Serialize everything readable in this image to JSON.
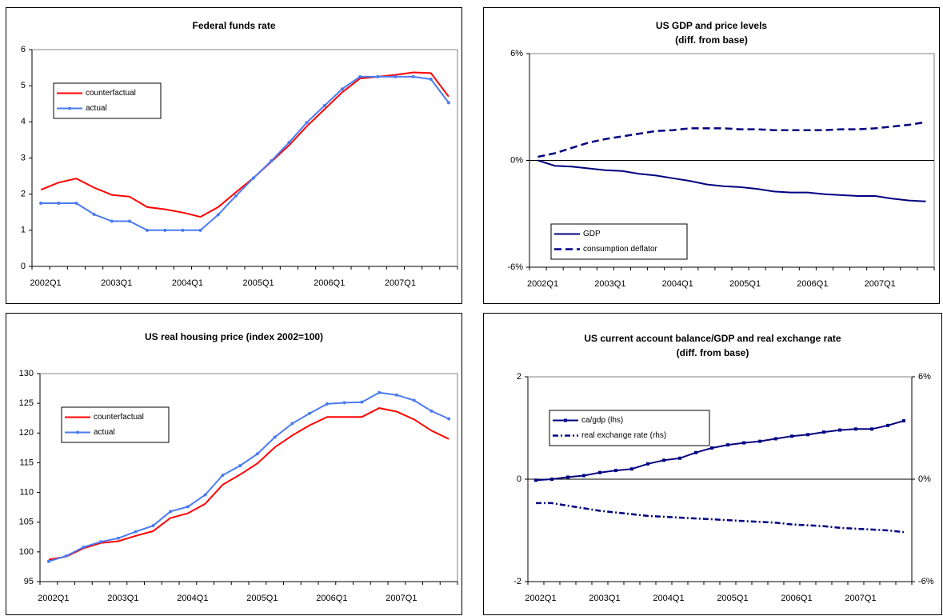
{
  "chart_data": [
    {
      "type": "line",
      "title": "Federal funds rate",
      "categories": [
        "2002Q1",
        null,
        null,
        null,
        "2003Q1",
        null,
        null,
        null,
        "2004Q1",
        null,
        null,
        null,
        "2005Q1",
        null,
        null,
        null,
        "2006Q1",
        null,
        null,
        null,
        "2007Q1",
        null,
        null,
        null
      ],
      "series": [
        {
          "name": "counterfactual",
          "color": "#ff0000",
          "style": "solid",
          "values": [
            2.12,
            2.32,
            2.43,
            2.18,
            1.98,
            1.93,
            1.64,
            1.58,
            1.49,
            1.37,
            1.64,
            2.05,
            2.45,
            2.9,
            3.35,
            3.88,
            4.35,
            4.82,
            5.2,
            5.25,
            5.3,
            5.37,
            5.35,
            4.7
          ]
        },
        {
          "name": "actual",
          "color": "#4a7bf0",
          "style": "solid",
          "marker": "circle",
          "values": [
            1.75,
            1.75,
            1.75,
            1.44,
            1.25,
            1.25,
            1.0,
            1.0,
            1.0,
            1.0,
            1.43,
            1.95,
            2.45,
            2.92,
            3.43,
            3.98,
            4.45,
            4.91,
            5.25,
            5.25,
            5.25,
            5.25,
            5.18,
            4.53
          ]
        }
      ],
      "ylim": [
        0,
        6
      ],
      "yticks": [
        0,
        1,
        2,
        3,
        4,
        5,
        6
      ],
      "legend": "upper-left"
    },
    {
      "type": "line",
      "title": "US GDP and price levels",
      "subtitle": "(diff. from base)",
      "categories": [
        "2002Q1",
        null,
        null,
        null,
        "2003Q1",
        null,
        null,
        null,
        "2004Q1",
        null,
        null,
        null,
        "2005Q1",
        null,
        null,
        null,
        "2006Q1",
        null,
        null,
        null,
        "2007Q1",
        null,
        null,
        null
      ],
      "series": [
        {
          "name": "GDP",
          "color": "#000080",
          "style": "solid",
          "values": [
            0,
            -0.3,
            -0.35,
            -0.45,
            -0.55,
            -0.6,
            -0.75,
            -0.85,
            -1.0,
            -1.15,
            -1.35,
            -1.45,
            -1.5,
            -1.6,
            -1.75,
            -1.8,
            -1.8,
            -1.9,
            -1.95,
            -2.0,
            -2.0,
            -2.15,
            -2.25,
            -2.3
          ]
        },
        {
          "name": "consumption deflator",
          "color": "#000080",
          "style": "dashed",
          "values": [
            0.2,
            0.4,
            0.7,
            1.0,
            1.2,
            1.35,
            1.5,
            1.65,
            1.7,
            1.8,
            1.8,
            1.8,
            1.75,
            1.75,
            1.7,
            1.7,
            1.7,
            1.7,
            1.75,
            1.75,
            1.8,
            1.9,
            2.0,
            2.15
          ]
        }
      ],
      "ylim": [
        -6,
        6
      ],
      "yticks": [
        {
          "value": -6,
          "label": "-6%"
        },
        {
          "value": 0,
          "label": "0%"
        },
        {
          "value": 6,
          "label": "6%"
        }
      ],
      "zero_line": true,
      "legend": "lower-left"
    },
    {
      "type": "line",
      "title": "US real housing price (index 2002=100)",
      "categories": [
        "2002Q1",
        null,
        null,
        null,
        "2003Q1",
        null,
        null,
        null,
        "2004Q1",
        null,
        null,
        null,
        "2005Q1",
        null,
        null,
        null,
        "2006Q1",
        null,
        null,
        null,
        "2007Q1",
        null,
        null,
        null
      ],
      "series": [
        {
          "name": "counterfactual",
          "color": "#ff0000",
          "style": "solid",
          "values": [
            98.7,
            99.2,
            100.6,
            101.5,
            101.8,
            102.7,
            103.5,
            105.7,
            106.5,
            108.1,
            111.3,
            113.0,
            114.9,
            117.6,
            119.6,
            121.3,
            122.7,
            122.7,
            122.7,
            124.2,
            123.6,
            122.3,
            120.4,
            119.0
          ]
        },
        {
          "name": "actual",
          "color": "#4a7bf0",
          "style": "solid",
          "marker": "circle",
          "values": [
            98.4,
            99.3,
            100.8,
            101.7,
            102.3,
            103.4,
            104.4,
            106.8,
            107.6,
            109.6,
            112.9,
            114.5,
            116.5,
            119.3,
            121.6,
            123.3,
            124.9,
            125.1,
            125.2,
            126.8,
            126.4,
            125.5,
            123.7,
            122.4
          ]
        }
      ],
      "ylim": [
        95,
        130
      ],
      "yticks": [
        95,
        100,
        105,
        110,
        115,
        120,
        125,
        130
      ],
      "legend": "upper-left"
    },
    {
      "type": "line",
      "title": "US current account balance/GDP and real exchange rate",
      "subtitle": "(diff. from base)",
      "categories": [
        "2002Q1",
        null,
        null,
        null,
        "2003Q1",
        null,
        null,
        null,
        "2004Q1",
        null,
        null,
        null,
        "2005Q1",
        null,
        null,
        null,
        "2006Q1",
        null,
        null,
        null,
        "2007Q1",
        null,
        null,
        null
      ],
      "series": [
        {
          "name": "ca/gdp (lhs)",
          "color": "#000080",
          "style": "solid",
          "marker": "square",
          "values": [
            -0.02,
            0.0,
            0.04,
            0.07,
            0.13,
            0.17,
            0.2,
            0.3,
            0.37,
            0.41,
            0.52,
            0.61,
            0.67,
            0.71,
            0.74,
            0.79,
            0.84,
            0.87,
            0.92,
            0.96,
            0.98,
            0.98,
            1.05,
            1.14
          ]
        },
        {
          "name": "real  exchange rate (rhs)",
          "color": "#000080",
          "style": "dashdot",
          "axis": "y2",
          "values": [
            -1.4,
            -1.4,
            -1.55,
            -1.7,
            -1.85,
            -1.95,
            -2.05,
            -2.15,
            -2.2,
            -2.25,
            -2.3,
            -2.35,
            -2.4,
            -2.45,
            -2.5,
            -2.55,
            -2.65,
            -2.7,
            -2.75,
            -2.85,
            -2.9,
            -2.95,
            -3.0,
            -3.1
          ]
        }
      ],
      "ylim": [
        -2,
        2
      ],
      "yticks": [
        -2,
        0,
        2
      ],
      "y2lim": [
        -6,
        6
      ],
      "y2ticks": [
        {
          "value": -6,
          "label": "-6%"
        },
        {
          "value": 0,
          "label": "0%"
        },
        {
          "value": 6,
          "label": "6%"
        }
      ],
      "zero_line": true,
      "legend": "upper-left"
    }
  ]
}
